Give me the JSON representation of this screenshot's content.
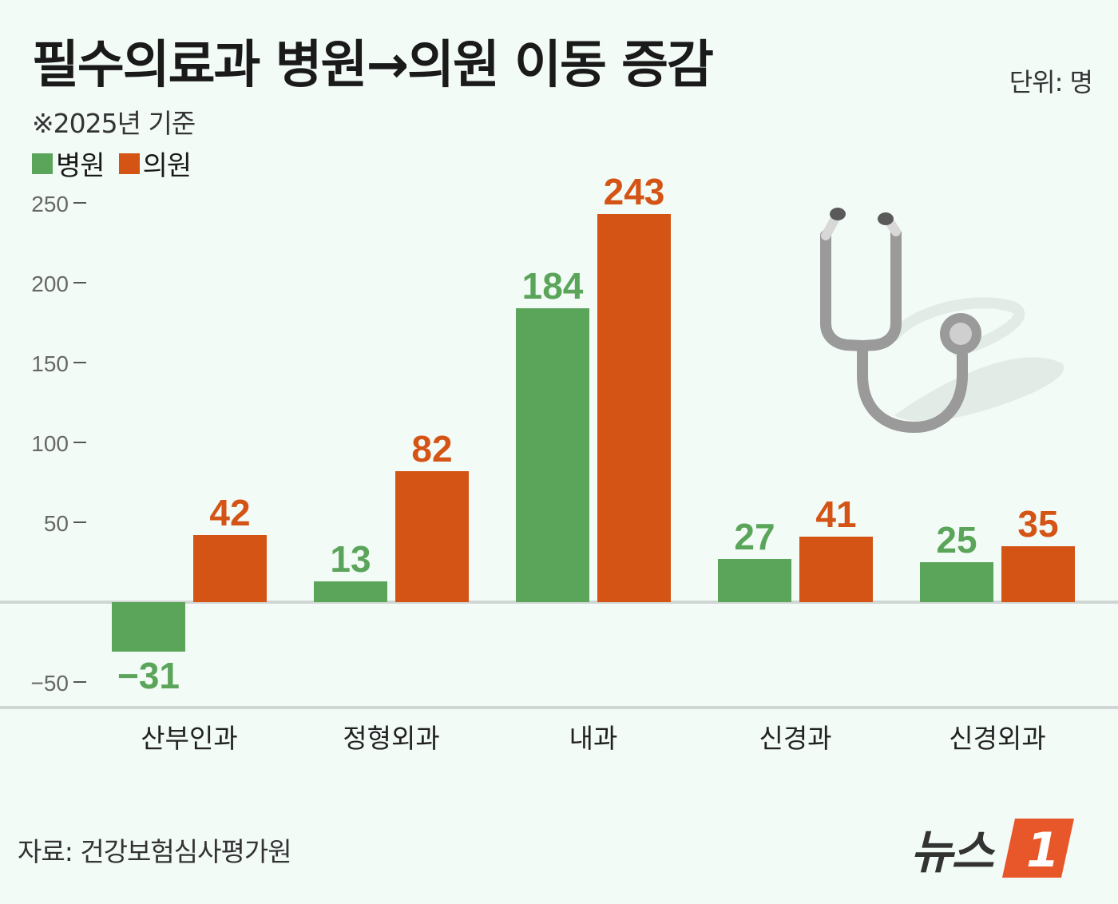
{
  "title": "필수의료과 병원→의원 이동 증감",
  "unit": "단위: 명",
  "subtitle": "※2025년 기준",
  "legend": [
    {
      "label": "병원",
      "color": "#5aa55a"
    },
    {
      "label": "의원",
      "color": "#d45416"
    }
  ],
  "source": "자료: 건강보험심사평가원",
  "logo": {
    "text": "뉴스",
    "number": "1"
  },
  "chart_data": {
    "type": "bar",
    "categories": [
      "산부인과",
      "정형외과",
      "내과",
      "신경과",
      "신경외과"
    ],
    "series": [
      {
        "name": "병원",
        "color": "#5aa55a",
        "values": [
          -31,
          13,
          184,
          27,
          25
        ]
      },
      {
        "name": "의원",
        "color": "#d45416",
        "values": [
          42,
          82,
          243,
          41,
          35
        ]
      }
    ],
    "yticks": [
      250,
      200,
      150,
      100,
      50,
      -50
    ],
    "ylim": [
      -50,
      250
    ],
    "title": "필수의료과 병원→의원 이동 증감",
    "xlabel": "",
    "ylabel": ""
  }
}
